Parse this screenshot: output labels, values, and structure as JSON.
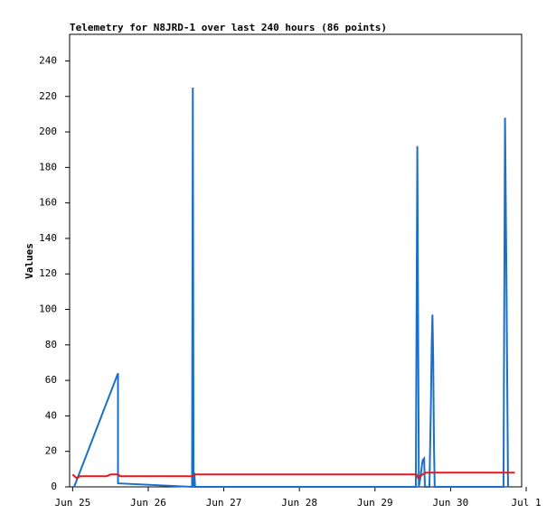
{
  "chart_data": {
    "type": "line",
    "title": "Telemetry for N8JRD-1 over last 240 hours (86 points)",
    "y_label": "Values",
    "x_unit": "days",
    "series": [
      {
        "color": "#1a6fc8",
        "x": [
          0.02,
          0.6,
          0.6,
          1.58,
          1.59,
          1.6,
          1.61,
          1.62,
          4.54,
          4.55,
          4.56,
          4.57,
          4.58,
          4.6,
          4.63,
          4.65,
          4.66,
          4.72,
          4.74,
          4.75,
          4.76,
          4.77,
          4.78,
          4.79,
          5.7,
          5.71,
          5.72,
          5.74,
          5.75,
          5.76
        ],
        "values": [
          0,
          64,
          2,
          0,
          225,
          0,
          8,
          0,
          0,
          97,
          192,
          97,
          0,
          5,
          15,
          16,
          0,
          0,
          48,
          80,
          97,
          72,
          24,
          0,
          0,
          104,
          208,
          112,
          56,
          0
        ]
      },
      {
        "color": "#e8161b",
        "x": [
          0.0,
          0.05,
          0.1,
          0.45,
          0.5,
          0.6,
          0.63,
          1.59,
          1.62,
          4.55,
          4.57,
          4.63,
          4.67,
          5.85
        ],
        "values": [
          7,
          5,
          6,
          6,
          7,
          7,
          6,
          6,
          7,
          7,
          5,
          7,
          8,
          8
        ]
      }
    ],
    "xlim": [
      -0.04,
      5.94
    ],
    "xticks": [
      {
        "value": 0,
        "label": "Jun 25"
      },
      {
        "value": 1,
        "label": "Jun 26"
      },
      {
        "value": 2,
        "label": "Jun 27"
      },
      {
        "value": 3,
        "label": "Jun 28"
      },
      {
        "value": 4,
        "label": "Jun 29"
      },
      {
        "value": 5,
        "label": "Jun 30"
      },
      {
        "value": 6,
        "label": "Jul 1"
      }
    ],
    "ylim": [
      0,
      255
    ],
    "yticks": [
      0,
      20,
      40,
      60,
      80,
      100,
      120,
      140,
      160,
      180,
      200,
      220,
      240
    ]
  }
}
